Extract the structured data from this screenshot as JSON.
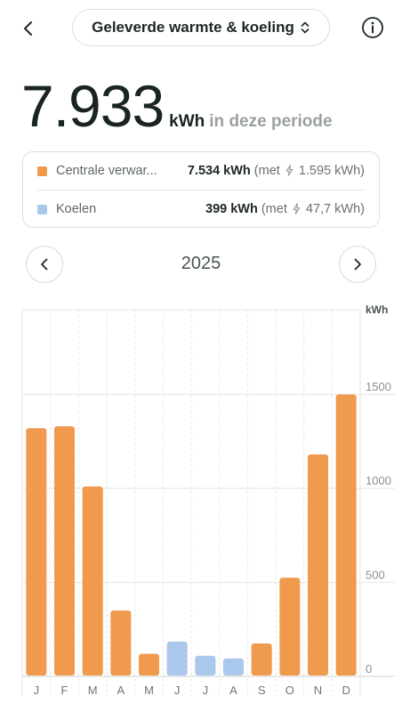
{
  "header": {
    "title": "Geleverde warmte & koeling",
    "back_icon": "chevron-left-icon",
    "switch_icon": "chevron-up-down-icon",
    "info_icon": "info-icon"
  },
  "summary": {
    "total_value": "7.933",
    "total_unit": "kWh",
    "total_suffix": "in deze periode"
  },
  "legend": {
    "items": [
      {
        "name": "Centrale verwar...",
        "value": "7.534 kWh",
        "extra_prefix": "(met",
        "extra_value": "1.595 kWh)",
        "color": "#ef9a4c"
      },
      {
        "name": "Koelen",
        "value": "399 kWh",
        "extra_prefix": "(met",
        "extra_value": "47,7 kWh)",
        "color": "#a9c8ec"
      }
    ]
  },
  "year_nav": {
    "year": "2025",
    "prev_icon": "chevron-left-icon",
    "next_icon": "chevron-right-icon"
  },
  "chart_data": {
    "type": "bar",
    "title": "",
    "xlabel": "",
    "ylabel": "kWh",
    "ylim": [
      0,
      1950
    ],
    "yticks": [
      0,
      500,
      1000,
      1500
    ],
    "grid": true,
    "categories": [
      "J",
      "F",
      "M",
      "A",
      "M",
      "J",
      "J",
      "A",
      "S",
      "O",
      "N",
      "D"
    ],
    "series": [
      {
        "name": "Centrale verwar...",
        "color": "#ef9a4c",
        "values": [
          1320,
          1330,
          1010,
          350,
          120,
          null,
          null,
          null,
          175,
          525,
          1180,
          1500
        ]
      },
      {
        "name": "Koelen",
        "color": "#a9c8ec",
        "values": [
          null,
          null,
          null,
          null,
          null,
          185,
          110,
          95,
          null,
          null,
          null,
          null
        ]
      }
    ]
  }
}
